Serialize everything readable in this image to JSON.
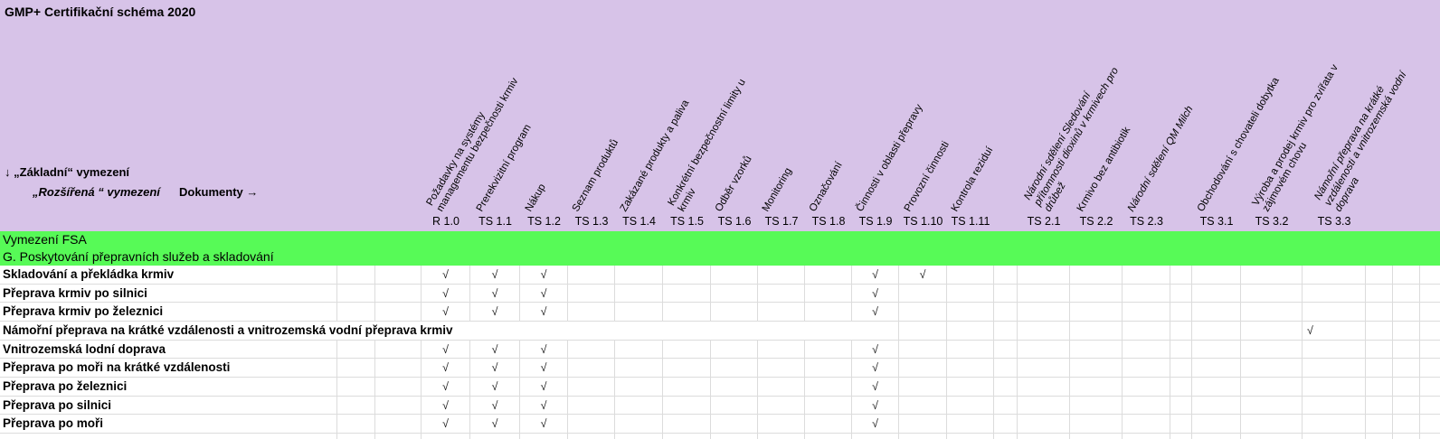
{
  "title": "GMP+ Certifikační schéma 2020",
  "legend": {
    "down_arrow": "↓",
    "basic": "„Základní“ vymezení",
    "extended": "„Rozšířená “ vymezení",
    "documents": "Dokumenty",
    "right_arrow": "→"
  },
  "check_symbol": "√",
  "colors": {
    "header_bg": "#d7c3e8",
    "section_bg": "#57fa57",
    "grid_line": "#dcdcdc",
    "check": "#1a1a1a"
  },
  "columns": [
    {
      "code": "R 1.0",
      "label": "Požadavky na systémy managementu bezpečnosti krmiv",
      "italic": false
    },
    {
      "code": "TS 1.1",
      "label": "Prerekvizitní program",
      "italic": false
    },
    {
      "code": "TS 1.2",
      "label": "Nákup",
      "italic": false
    },
    {
      "code": "TS 1.3",
      "label": "Seznam produktů",
      "italic": false
    },
    {
      "code": "TS 1.4",
      "label": "Zakázané produkty a paliva",
      "italic": false
    },
    {
      "code": "TS 1.5",
      "label": "Konkrétní bezpečnostní limity u krmiv",
      "italic": false
    },
    {
      "code": "TS 1.6",
      "label": "Odběr vzorků",
      "italic": false
    },
    {
      "code": "TS 1.7",
      "label": "Monitoring",
      "italic": false
    },
    {
      "code": "TS 1.8",
      "label": "Označování",
      "italic": false
    },
    {
      "code": "TS 1.9",
      "label": "Činnosti v oblasti přepravy",
      "italic": false
    },
    {
      "code": "TS 1.10",
      "label": "Provozní činnosti",
      "italic": false
    },
    {
      "code": "TS 1.11",
      "label": "Kontrola reziduí",
      "italic": false
    },
    {
      "code": "TS 2.1",
      "label": "Národní sdělení Sledování přítomnosti dioxinů v krmivech pro drůbež",
      "italic": true
    },
    {
      "code": "TS 2.2",
      "label": "Krmivo bez antibiotik",
      "italic": false
    },
    {
      "code": "TS 2.3",
      "label": "Národní sdělení QM Milch",
      "italic": true
    },
    {
      "code": "TS 3.1",
      "label": "Obchodování s chovateli dobytka",
      "italic": false
    },
    {
      "code": "TS 3.2",
      "label": "Výroba a prodej krmiv pro zvířata v zájmovém chovu",
      "italic": false
    },
    {
      "code": "TS 3.3",
      "label": "Námořní přeprava na krátké vzdálenosti a vnitrozemská vodní doprava",
      "italic": true
    }
  ],
  "sections": [
    {
      "label": "Vymezení FSA"
    },
    {
      "label": "G. Poskytování přepravních služeb a skladování"
    }
  ],
  "rows": [
    {
      "label": "Skladování a překládka krmiv",
      "checks": [
        "R 1.0",
        "TS 1.1",
        "TS 1.2",
        "TS 1.9",
        "TS 1.10"
      ]
    },
    {
      "label": "Přeprava krmiv po silnici",
      "checks": [
        "R 1.0",
        "TS 1.1",
        "TS 1.2",
        "TS 1.9"
      ]
    },
    {
      "label": "Přeprava krmiv po železnici",
      "checks": [
        "R 1.0",
        "TS 1.1",
        "TS 1.2",
        "TS 1.9"
      ]
    },
    {
      "label": "Námořní přeprava na krátké vzdálenosti a vnitrozemská vodní přeprava krmiv",
      "checks": [
        "TS 3.3"
      ],
      "label_overflow": true
    },
    {
      "label": "Vnitrozemská lodní doprava",
      "checks": [
        "R 1.0",
        "TS 1.1",
        "TS 1.2",
        "TS 1.9"
      ]
    },
    {
      "label": "Přeprava po moři na krátké vzdálenosti",
      "checks": [
        "R 1.0",
        "TS 1.1",
        "TS 1.2",
        "TS 1.9"
      ]
    },
    {
      "label": "Přeprava po železnici",
      "checks": [
        "R 1.0",
        "TS 1.1",
        "TS 1.2",
        "TS 1.9"
      ]
    },
    {
      "label": "Přeprava po silnici",
      "checks": [
        "R 1.0",
        "TS 1.1",
        "TS 1.2",
        "TS 1.9"
      ]
    },
    {
      "label": "Přeprava po moři",
      "checks": [
        "R 1.0",
        "TS 1.1",
        "TS 1.2",
        "TS 1.9"
      ]
    }
  ]
}
